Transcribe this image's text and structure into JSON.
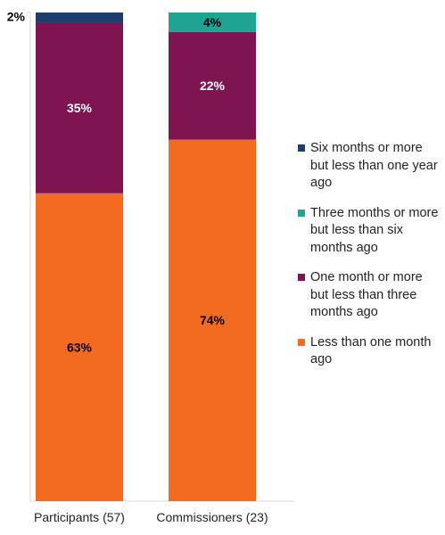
{
  "chart_data": {
    "type": "bar",
    "stacked": true,
    "orientation": "vertical",
    "ylim": [
      0,
      100
    ],
    "categories": [
      "Participants (57)",
      "Commissioners (23)"
    ],
    "series": [
      {
        "name": "Less than one month ago",
        "color": "#F26B21",
        "values": [
          63,
          74
        ],
        "labels": [
          "63%",
          "74%"
        ],
        "label_color": "#000000"
      },
      {
        "name": "One month or more but less than three months ago",
        "color": "#7E1450",
        "values": [
          35,
          22
        ],
        "labels": [
          "35%",
          "22%"
        ],
        "label_color": "#ffffff"
      },
      {
        "name": "Three months or more but less than six months ago",
        "color": "#1FA392",
        "values": [
          0,
          4
        ],
        "labels": [
          "",
          "4%"
        ],
        "label_color": "#000000"
      },
      {
        "name": "Six months or more but less than one year ago",
        "color": "#1C3D6E",
        "values": [
          2,
          0
        ],
        "labels": [
          "2%",
          ""
        ],
        "label_color": "#000000"
      }
    ],
    "legend_order": [
      3,
      2,
      1,
      0
    ],
    "legend_position": "right"
  }
}
